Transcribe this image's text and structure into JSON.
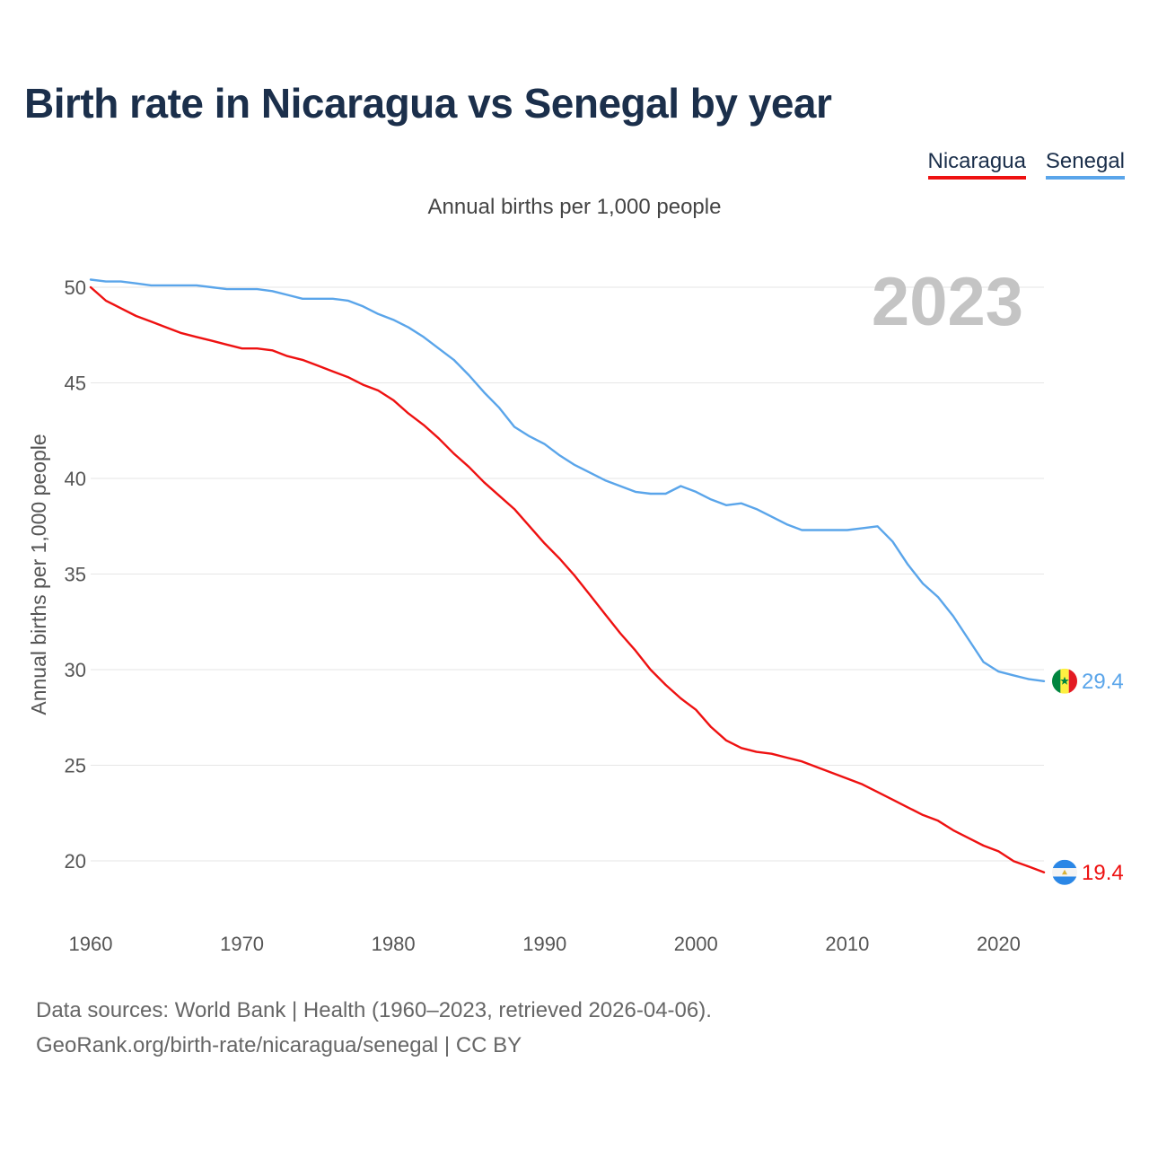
{
  "title": "Birth rate in Nicaragua vs Senegal by year",
  "subtitle": "Annual births per 1,000 people",
  "legend": [
    {
      "label": "Nicaragua",
      "color": "#ee1111"
    },
    {
      "label": "Senegal",
      "color": "#5aa5ea"
    }
  ],
  "source_lines": [
    "Data sources: World Bank | Health (1960–2023, retrieved 2026-04-06).",
    "GeoRank.org/birth-rate/nicaragua/senegal | CC BY"
  ],
  "chart_data": {
    "type": "line",
    "title": "Birth rate in Nicaragua vs Senegal by year",
    "xlabel": "",
    "ylabel": "Annual births per 1,000 people",
    "xlim": [
      1960,
      2023
    ],
    "ylim": [
      18,
      51
    ],
    "yticks": [
      20,
      25,
      30,
      35,
      40,
      45,
      50
    ],
    "xticks": [
      1960,
      1970,
      1980,
      1990,
      2000,
      2010,
      2020
    ],
    "grid": true,
    "current_year_label": "2023",
    "x": [
      1960,
      1961,
      1962,
      1963,
      1964,
      1965,
      1966,
      1967,
      1968,
      1969,
      1970,
      1971,
      1972,
      1973,
      1974,
      1975,
      1976,
      1977,
      1978,
      1979,
      1980,
      1981,
      1982,
      1983,
      1984,
      1985,
      1986,
      1987,
      1988,
      1989,
      1990,
      1991,
      1992,
      1993,
      1994,
      1995,
      1996,
      1997,
      1998,
      1999,
      2000,
      2001,
      2002,
      2003,
      2004,
      2005,
      2006,
      2007,
      2008,
      2009,
      2010,
      2011,
      2012,
      2013,
      2014,
      2015,
      2016,
      2017,
      2018,
      2019,
      2020,
      2021,
      2022,
      2023
    ],
    "series": [
      {
        "name": "Nicaragua",
        "color": "#ee1111",
        "end_label": "19.4",
        "values": [
          50.0,
          49.3,
          48.9,
          48.5,
          48.2,
          47.9,
          47.6,
          47.4,
          47.2,
          47.0,
          46.8,
          46.8,
          46.7,
          46.4,
          46.2,
          45.9,
          45.6,
          45.3,
          44.9,
          44.6,
          44.1,
          43.4,
          42.8,
          42.1,
          41.3,
          40.6,
          39.8,
          39.1,
          38.4,
          37.5,
          36.6,
          35.8,
          34.9,
          33.9,
          32.9,
          31.9,
          31.0,
          30.0,
          29.2,
          28.5,
          27.9,
          27.0,
          26.3,
          25.9,
          25.7,
          25.6,
          25.4,
          25.2,
          24.9,
          24.6,
          24.3,
          24.0,
          23.6,
          23.2,
          22.8,
          22.4,
          22.1,
          21.6,
          21.2,
          20.8,
          20.5,
          19.98,
          19.7,
          19.4
        ]
      },
      {
        "name": "Senegal",
        "color": "#5aa5ea",
        "end_label": "29.4",
        "values": [
          50.4,
          50.3,
          50.3,
          50.2,
          50.1,
          50.1,
          50.1,
          50.1,
          50.0,
          49.9,
          49.9,
          49.9,
          49.8,
          49.6,
          49.4,
          49.4,
          49.4,
          49.3,
          49.0,
          48.6,
          48.3,
          47.9,
          47.4,
          46.8,
          46.2,
          45.4,
          44.5,
          43.7,
          42.7,
          42.2,
          41.8,
          41.2,
          40.7,
          40.3,
          39.9,
          39.6,
          39.3,
          39.2,
          39.2,
          39.6,
          39.3,
          38.9,
          38.6,
          38.7,
          38.4,
          38.0,
          37.6,
          37.3,
          37.3,
          37.3,
          37.3,
          37.4,
          37.5,
          36.7,
          35.5,
          34.5,
          33.8,
          32.8,
          31.6,
          30.4,
          29.9,
          29.7,
          29.5,
          29.4
        ]
      }
    ]
  }
}
